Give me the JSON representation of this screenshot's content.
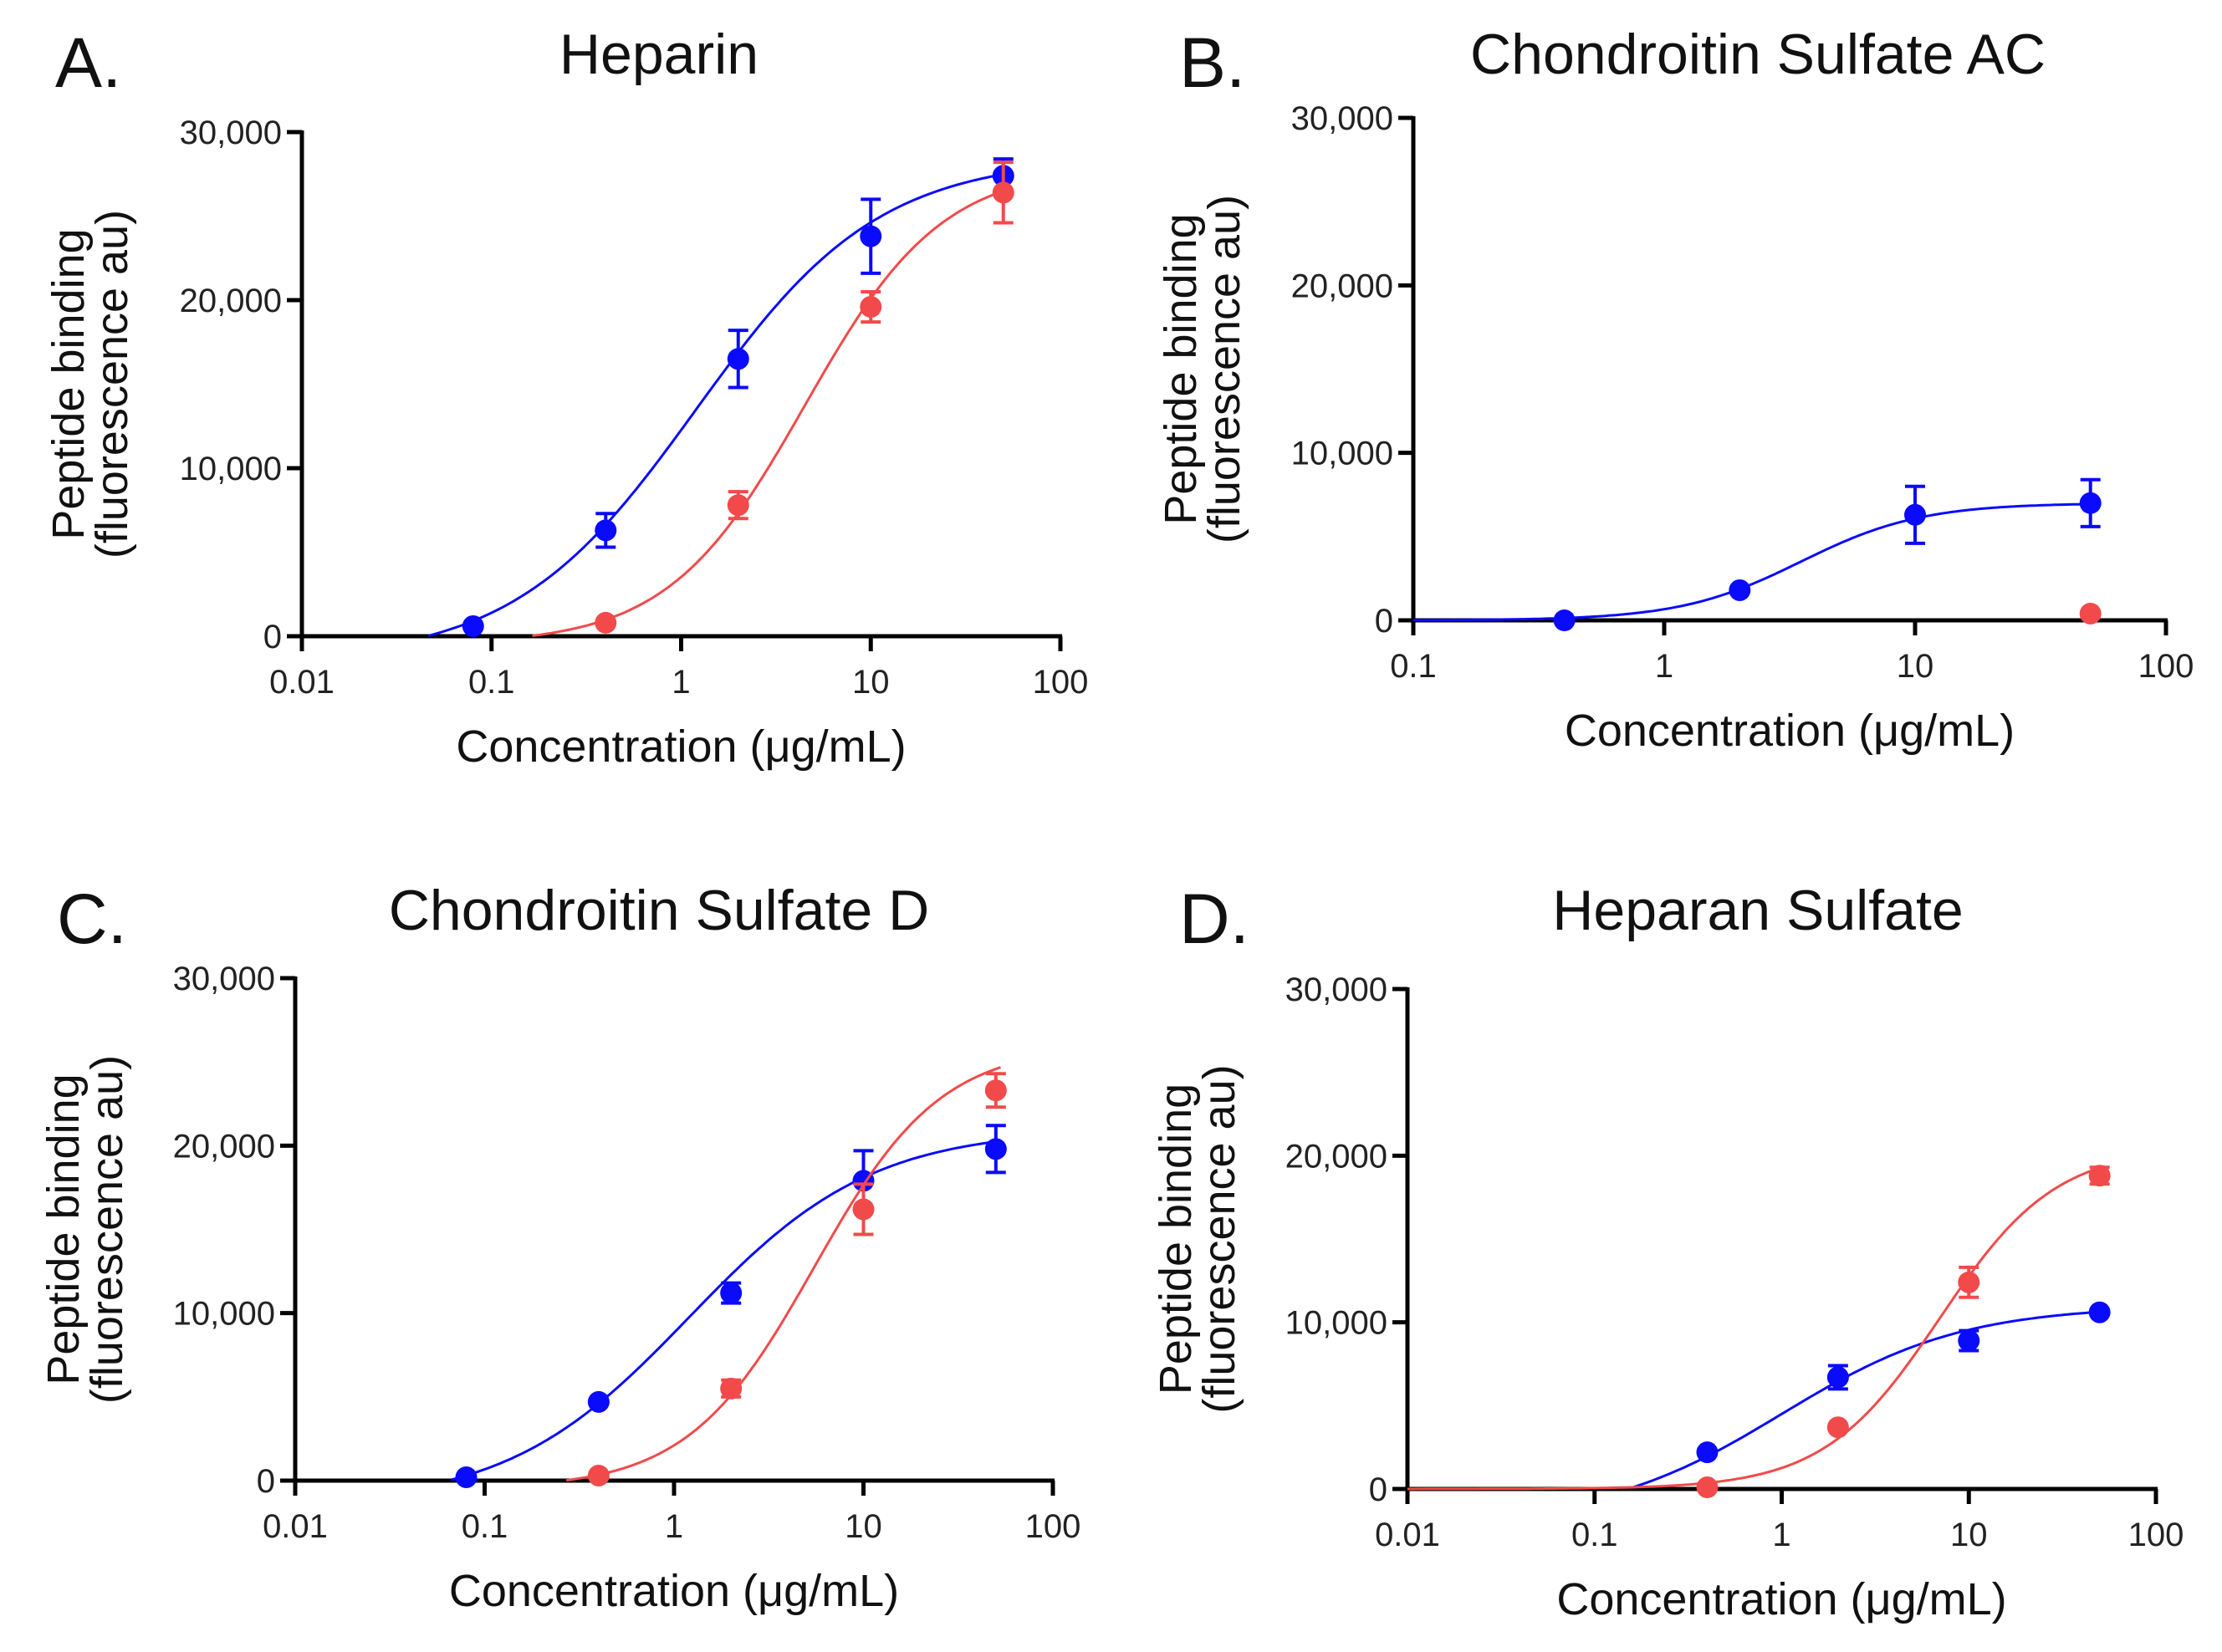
{
  "colors": {
    "series1": "#0a0aff",
    "series2": "#f24a4a",
    "axis": "#000000"
  },
  "chart_data": [
    {
      "type": "scatter",
      "panel_label": "A.",
      "title": "Heparin",
      "xlabel": "Concentration (μg/mL)",
      "ylabel": [
        "Peptide binding",
        "(fluorescence au)"
      ],
      "xscale": "log",
      "xlim": [
        0.01,
        100
      ],
      "ylim": [
        0,
        30000
      ],
      "xticks": [
        "0.01",
        "0.1",
        "1",
        "10",
        "100"
      ],
      "xtick_values": [
        0.01,
        0.1,
        1,
        10,
        100
      ],
      "yticks": [
        "0",
        "10,000",
        "20,000",
        "30,000"
      ],
      "ytick_values": [
        0,
        10000,
        20000,
        30000
      ],
      "series": [
        {
          "name": "blue",
          "color_key": "series1",
          "x": [
            0.08,
            0.4,
            2,
            10,
            50
          ],
          "y": [
            600,
            6300,
            16500,
            23800,
            27400
          ],
          "err": [
            0,
            1000,
            1700,
            2200,
            1000
          ],
          "fit": {
            "bottom": -1500,
            "top": 28500,
            "ec50": 1.2,
            "hill": 0.9
          }
        },
        {
          "name": "red",
          "color_key": "series2",
          "x": [
            0.4,
            2,
            10,
            50
          ],
          "y": [
            800,
            7800,
            19600,
            26400
          ],
          "err": [
            0,
            800,
            900,
            1800
          ],
          "fit": {
            "bottom": -500,
            "top": 28000,
            "ec50": 4.5,
            "hill": 1.2
          }
        }
      ]
    },
    {
      "type": "scatter",
      "panel_label": "B.",
      "title": "Chondroitin Sulfate AC",
      "xlabel": "Concentration (μg/mL)",
      "ylabel": [
        "Peptide binding",
        "(fluorescence au)"
      ],
      "xscale": "log",
      "xlim": [
        0.1,
        100
      ],
      "ylim": [
        0,
        30000
      ],
      "xticks": [
        "0.1",
        "1",
        "10",
        "100"
      ],
      "xtick_values": [
        0.1,
        1,
        10,
        100
      ],
      "yticks": [
        "0",
        "10,000",
        "20,000",
        "30,000"
      ],
      "ytick_values": [
        0,
        10000,
        20000,
        30000
      ],
      "series": [
        {
          "name": "blue",
          "color_key": "series1",
          "x": [
            0.4,
            2,
            10,
            50
          ],
          "y": [
            0,
            1800,
            6300,
            7000
          ],
          "err": [
            0,
            0,
            1700,
            1400
          ],
          "fit": {
            "bottom": 0,
            "top": 7000,
            "ec50": 3.5,
            "hill": 1.8
          }
        },
        {
          "name": "red",
          "color_key": "series2",
          "x": [
            50
          ],
          "y": [
            400
          ],
          "err": [
            0
          ],
          "fit": null
        }
      ]
    },
    {
      "type": "scatter",
      "panel_label": "C.",
      "title": "Chondroitin Sulfate D",
      "xlabel": "Concentration (μg/mL)",
      "ylabel": [
        "Peptide binding",
        "(fluorescence au)"
      ],
      "xscale": "log",
      "xlim": [
        0.01,
        100
      ],
      "ylim": [
        0,
        30000
      ],
      "xticks": [
        "0.01",
        "0.1",
        "1",
        "10",
        "100"
      ],
      "xtick_values": [
        0.01,
        0.1,
        1,
        10,
        100
      ],
      "yticks": [
        "0",
        "10,000",
        "20,000",
        "30,000"
      ],
      "ytick_values": [
        0,
        10000,
        20000,
        30000
      ],
      "series": [
        {
          "name": "blue",
          "color_key": "series1",
          "x": [
            0.08,
            0.4,
            2,
            10,
            50
          ],
          "y": [
            200,
            4700,
            11200,
            17900,
            19800
          ],
          "err": [
            0,
            0,
            600,
            1800,
            1400
          ],
          "fit": {
            "bottom": -1500,
            "top": 21000,
            "ec50": 1.2,
            "hill": 0.9
          }
        },
        {
          "name": "red",
          "color_key": "series2",
          "x": [
            0.4,
            2,
            10,
            50
          ],
          "y": [
            300,
            5500,
            16200,
            23300
          ],
          "err": [
            0,
            500,
            1500,
            1000
          ],
          "fit": {
            "bottom": -500,
            "top": 26000,
            "ec50": 5.5,
            "hill": 1.3
          }
        }
      ]
    },
    {
      "type": "scatter",
      "panel_label": "D.",
      "title": "Heparan Sulfate",
      "xlabel": "Concentration (μg/mL)",
      "ylabel": [
        "Peptide binding",
        "(fluorescence au)"
      ],
      "xscale": "log",
      "xlim": [
        0.01,
        100
      ],
      "ylim": [
        0,
        30000
      ],
      "xticks": [
        "0.01",
        "0.1",
        "1",
        "10",
        "100"
      ],
      "xtick_values": [
        0.01,
        0.1,
        1,
        10,
        100
      ],
      "yticks": [
        "0",
        "10,000",
        "20,000",
        "30,000"
      ],
      "ytick_values": [
        0,
        10000,
        20000,
        30000
      ],
      "series": [
        {
          "name": "blue",
          "color_key": "series1",
          "x": [
            0.4,
            2,
            10,
            50
          ],
          "y": [
            2200,
            6700,
            8900,
            10600
          ],
          "err": [
            0,
            700,
            600,
            0
          ],
          "fit": {
            "bottom": -2000,
            "top": 11000,
            "ec50": 1.0,
            "hill": 0.9
          }
        },
        {
          "name": "red",
          "color_key": "series2",
          "x": [
            0.4,
            2,
            10,
            50
          ],
          "y": [
            100,
            3700,
            12400,
            18800
          ],
          "err": [
            0,
            0,
            900,
            500
          ],
          "fit": {
            "bottom": 0,
            "top": 20500,
            "ec50": 7,
            "hill": 1.4
          }
        }
      ]
    }
  ]
}
